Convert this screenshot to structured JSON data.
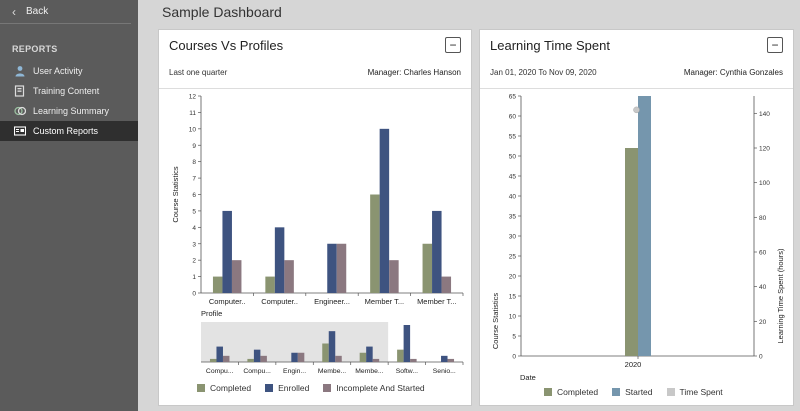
{
  "sidebar": {
    "back_label": "Back",
    "section_title": "REPORTS",
    "items": [
      {
        "label": "User Activity",
        "icon": "user-icon"
      },
      {
        "label": "Training Content",
        "icon": "content-icon"
      },
      {
        "label": "Learning Summary",
        "icon": "summary-icon"
      },
      {
        "label": "Custom Reports",
        "icon": "report-icon",
        "active": true
      }
    ]
  },
  "page_title": "Sample Dashboard",
  "panels": {
    "left": {
      "title": "Courses Vs Profiles",
      "subtitle": "Last one quarter",
      "manager": "Manager: Charles Hanson",
      "collapse_label": "−"
    },
    "right": {
      "title": "Learning Time Spent",
      "subtitle": "Jan 01, 2020 To Nov 09, 2020",
      "manager": "Manager: Cynthia Gonzales",
      "collapse_label": "−"
    }
  },
  "colors": {
    "completed": "#8a9471",
    "enrolled": "#3e5380",
    "incomplete": "#8b7880",
    "started": "#7596ad",
    "time_spent": "#c8c8c8"
  },
  "chart_data": [
    {
      "type": "bar",
      "ylabel": "Course Statistics",
      "xlabel": "Profile",
      "ylim": [
        0,
        12
      ],
      "yticks": [
        0,
        1,
        2,
        3,
        4,
        5,
        6,
        7,
        8,
        9,
        10,
        11,
        12
      ],
      "categories": [
        "Computer..",
        "Computer..",
        "Engineer...",
        "Member T...",
        "Member T..."
      ],
      "series": [
        {
          "name": "Completed",
          "values": [
            1,
            1,
            0,
            6,
            3
          ]
        },
        {
          "name": "Enrolled",
          "values": [
            5,
            4,
            3,
            10,
            5
          ]
        },
        {
          "name": "Incomplete And Started",
          "values": [
            2,
            2,
            3,
            2,
            1
          ]
        }
      ],
      "overview": {
        "categories": [
          "Compu...",
          "Compu...",
          "Engin...",
          "Membe...",
          "Membe...",
          "Softw...",
          "Senio..."
        ],
        "series": [
          {
            "name": "Completed",
            "values": [
              1,
              1,
              0,
              6,
              3,
              4,
              0
            ]
          },
          {
            "name": "Enrolled",
            "values": [
              5,
              4,
              3,
              10,
              5,
              12,
              2
            ]
          },
          {
            "name": "Incomplete And Started",
            "values": [
              2,
              2,
              3,
              2,
              1,
              1,
              1
            ]
          }
        ],
        "selection_categories": 5
      },
      "legend": [
        "Completed",
        "Enrolled",
        "Incomplete And Started"
      ]
    },
    {
      "type": "bar",
      "ylabel": "Course Statistics",
      "y2label": "Learning Time Spent (hours)",
      "xlabel": "Date",
      "ylim": [
        0,
        65
      ],
      "yticks": [
        0,
        5,
        10,
        15,
        20,
        25,
        30,
        35,
        40,
        45,
        50,
        55,
        60,
        65
      ],
      "y2lim": [
        0,
        150
      ],
      "y2ticks": [
        0,
        20,
        40,
        60,
        80,
        100,
        120,
        140
      ],
      "categories": [
        "2020"
      ],
      "series": [
        {
          "name": "Completed",
          "values": [
            52
          ]
        },
        {
          "name": "Started",
          "values": [
            65
          ]
        },
        {
          "name": "Time Spent",
          "axis": "y2",
          "values": [
            142
          ]
        }
      ],
      "legend": [
        "Completed",
        "Started",
        "Time Spent"
      ]
    }
  ]
}
